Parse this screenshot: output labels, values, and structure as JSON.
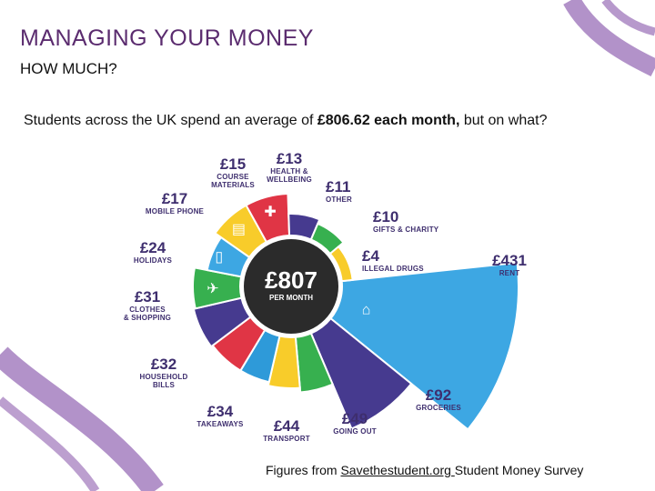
{
  "slide": {
    "title": "MANAGING YOUR MONEY",
    "subtitle": "HOW MUCH?",
    "intro_pre": "Students across the UK spend an average of ",
    "intro_bold": "£806.62 each month,",
    "intro_post": " but on what?",
    "source_pre": "Figures from ",
    "source_link": "Savethestudent.org ",
    "source_post": "Student Money Survey"
  },
  "infographic": {
    "center_amount": "£807",
    "center_label": "PER MONTH",
    "categories": [
      {
        "amount": "£431",
        "label": [
          "RENT"
        ],
        "value": 431,
        "color": "#3da7e3"
      },
      {
        "amount": "£92",
        "label": [
          "GROCERIES"
        ],
        "value": 92,
        "color": "#463a8f"
      },
      {
        "amount": "£49",
        "label": [
          "GOING OUT"
        ],
        "value": 49,
        "color": "#37b04f"
      },
      {
        "amount": "£44",
        "label": [
          "TRANSPORT"
        ],
        "value": 44,
        "color": "#f8cc2a"
      },
      {
        "amount": "£34",
        "label": [
          "TAKEAWAYS"
        ],
        "value": 34,
        "color": "#2e9ad9"
      },
      {
        "amount": "£32",
        "label": [
          "HOUSEHOLD",
          "BILLS"
        ],
        "value": 32,
        "color": "#e03545"
      },
      {
        "amount": "£31",
        "label": [
          "CLOTHES",
          "& SHOPPING"
        ],
        "value": 31,
        "color": "#463a8f"
      },
      {
        "amount": "£24",
        "label": [
          "HOLIDAYS"
        ],
        "value": 24,
        "color": "#37b04f"
      },
      {
        "amount": "£17",
        "label": [
          "MOBILE PHONE"
        ],
        "value": 17,
        "color": "#3da7e3"
      },
      {
        "amount": "£15",
        "label": [
          "COURSE",
          "MATERIALS"
        ],
        "value": 15,
        "color": "#f8cc2a"
      },
      {
        "amount": "£13",
        "label": [
          "HEALTH &",
          "WELLBEING"
        ],
        "value": 13,
        "color": "#e03545"
      },
      {
        "amount": "£11",
        "label": [
          "OTHER"
        ],
        "value": 11,
        "color": "#463a8f"
      },
      {
        "amount": "£10",
        "label": [
          "GIFTS & CHARITY"
        ],
        "value": 10,
        "color": "#37b04f"
      },
      {
        "amount": "£4",
        "label": [
          "ILLEGAL DRUGS"
        ],
        "value": 4,
        "color": "#f8cc2a"
      }
    ],
    "colors": {
      "center": "#2b2b2b",
      "ring": "#ffffff",
      "text": "#3e2e6e",
      "swirl": "#a57fbf"
    }
  }
}
